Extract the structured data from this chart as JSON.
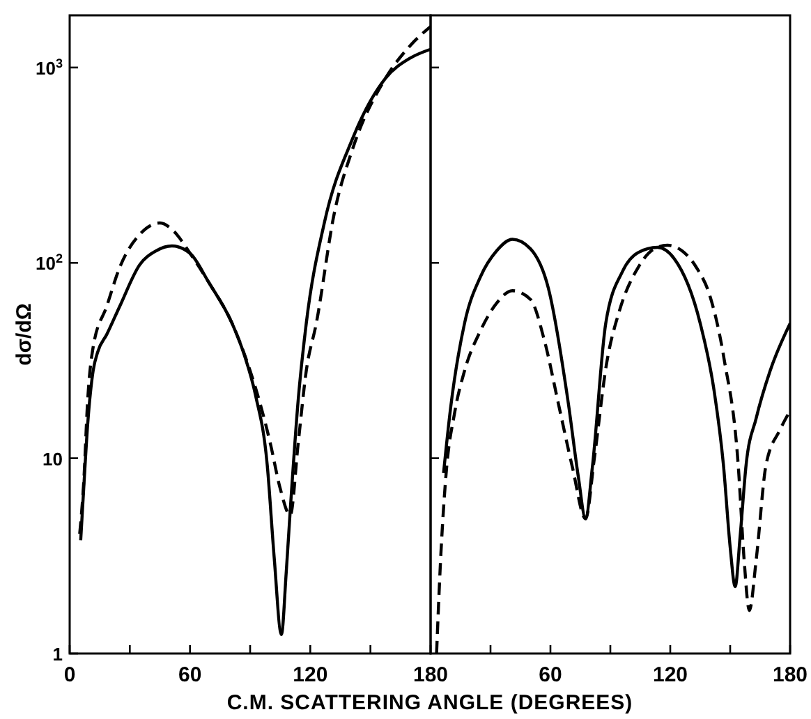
{
  "chart_data": [
    {
      "type": "line",
      "xlabel": "C.M. SCATTERING ANGLE (DEGREES)",
      "ylabel": "dσ/dΩ",
      "log": "y",
      "xlim": [
        0,
        180
      ],
      "ylim": [
        1,
        1850
      ],
      "xticks": [
        0,
        {
          "value": 30,
          "label": null
        },
        60,
        {
          "value": 90,
          "label": null
        },
        120,
        {
          "value": 150,
          "label": null
        },
        180
      ],
      "yticks": [
        1,
        10,
        {
          "value": 100,
          "label": "10$^{2}$"
        },
        {
          "value": 1000,
          "label": "10$^{3}$"
        }
      ],
      "grid": false,
      "series": [
        {
          "color": "#000000",
          "line_style": "solid",
          "x": [
            5.5,
            7,
            9,
            11.7,
            14,
            18.5,
            25,
            35,
            43,
            51,
            60,
            69.5,
            81,
            87,
            92.7,
            98.5,
            102,
            105.6,
            108,
            110,
            114,
            118,
            127,
            141,
            157.5,
            170,
            180
          ],
          "values": [
            3.8,
            7,
            15,
            28,
            35,
            43,
            60,
            98,
            115,
            122,
            112,
            79,
            49,
            34,
            21,
            9.3,
            3.1,
            1.25,
            2.6,
            5.4,
            20,
            49,
            160,
            430,
            880,
            1120,
            1240
          ]
        },
        {
          "color": "#000000",
          "line_style": "dashed",
          "x": [
            5,
            7,
            9,
            11.7,
            18.5,
            25,
            35,
            45,
            52,
            60,
            69.5,
            81,
            90,
            95,
            100,
            105,
            110,
            114,
            118,
            123,
            132,
            141,
            157.5,
            170,
            180
          ],
          "values": [
            4.1,
            7.5,
            20,
            37,
            60,
            95,
            140,
            160,
            145,
            112,
            79,
            49,
            28,
            19,
            12,
            7,
            5.1,
            12,
            28,
            49,
            180,
            380,
            880,
            1300,
            1620
          ]
        }
      ]
    },
    {
      "type": "line",
      "tick_labels": "x",
      "log": "y",
      "xlim": [
        0,
        180
      ],
      "ylim": [
        1,
        1850
      ],
      "xticks": [
        {
          "value": 30,
          "label": null
        },
        60,
        {
          "value": 90,
          "label": null
        },
        120,
        {
          "value": 150,
          "label": null
        },
        180
      ],
      "yticks": [
        {
          "value": 10,
          "label": null
        },
        {
          "value": 100,
          "label": null
        },
        {
          "value": 1000,
          "label": null
        }
      ],
      "grid": false,
      "series": [
        {
          "color": "#000000",
          "line_style": "solid",
          "x": [
            6.5,
            10,
            17,
            25,
            33,
            41,
            50,
            59,
            69,
            74,
            77.6,
            81,
            87.7,
            96,
            104,
            113.6,
            122,
            135,
            142,
            146.6,
            150,
            152.5,
            155,
            158,
            163,
            170,
            180
          ],
          "values": [
            8.4,
            18,
            49,
            85,
            115,
            132,
            118,
            74,
            19,
            8,
            4.9,
            9,
            49,
            90,
            113,
            120,
            105,
            49,
            22,
            9.3,
            3.5,
            2.2,
            4,
            9.3,
            16,
            28,
            49
          ]
        },
        {
          "color": "#000000",
          "line_style": "dashed",
          "x": [
            3,
            5,
            7.8,
            12,
            17,
            25,
            33,
            41,
            50,
            57,
            64,
            71,
            77.6,
            82,
            88,
            94.6,
            104,
            112,
            118.6,
            126,
            133,
            140,
            147,
            154,
            157,
            159.6,
            163,
            168,
            175,
            180
          ],
          "values": [
            1,
            3,
            8.4,
            17,
            28,
            45,
            62,
            72,
            65,
            40,
            19,
            9,
            4.9,
            10,
            30,
            57,
            95,
            118,
            123,
            115,
            95,
            67,
            32,
            9.3,
            3,
            1.66,
            3,
            9.3,
            14,
            17.5
          ]
        }
      ]
    }
  ]
}
